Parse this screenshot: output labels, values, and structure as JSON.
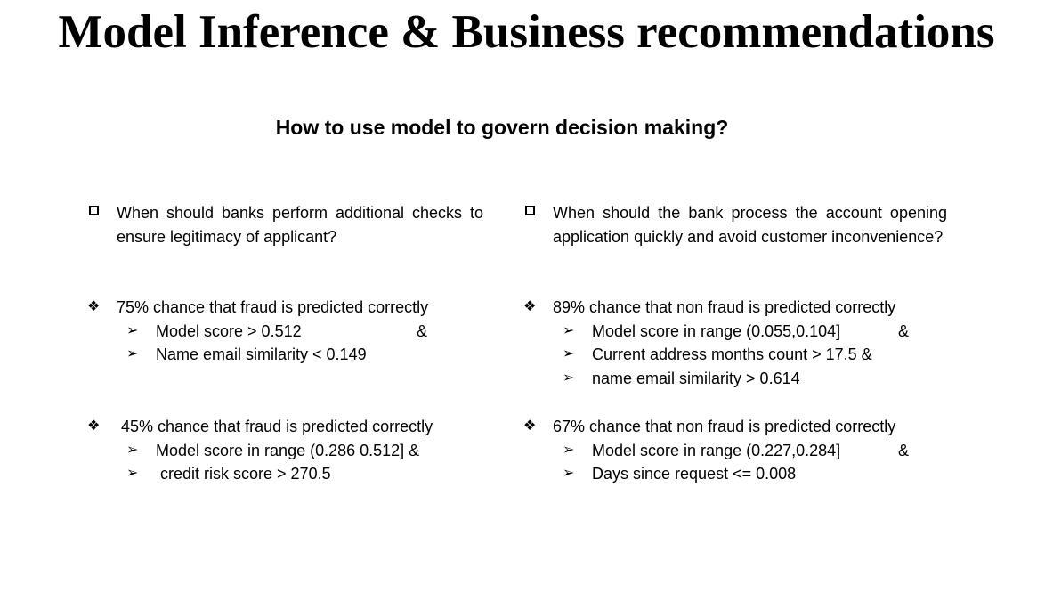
{
  "title": "Model Inference & Business recommendations",
  "subtitle": "How to use model to govern decision making?",
  "left": {
    "question": "When should banks perform additional checks  to ensure legitimacy of applicant?",
    "groups": [
      {
        "stat": "75% chance that fraud is predicted correctly",
        "conditions": [
          {
            "text": "Model score  > 0.512",
            "amp": "&"
          },
          {
            "text": "Name email similarity  < 0.149",
            "amp": ""
          }
        ]
      },
      {
        "stat": "45% chance that fraud is predicted correctly",
        "conditions": [
          {
            "text": "Model score in range (0.286 0.512] &",
            "amp": ""
          },
          {
            "text": " credit risk score > 270.5",
            "amp": ""
          }
        ]
      }
    ]
  },
  "right": {
    "question": "When should the bank process the account opening application quickly and avoid customer inconvenience?",
    "groups": [
      {
        "stat": "89% chance that non fraud is predicted correctly",
        "conditions": [
          {
            "text": "Model score in range  (0.055,0.104]",
            "amp": "&"
          },
          {
            "text": "Current address months count > 17.5  &",
            "amp": ""
          },
          {
            "text": "name email similarity >  0.614",
            "amp": ""
          }
        ]
      },
      {
        "stat": "67% chance that non fraud is predicted correctly",
        "conditions": [
          {
            "text": "Model score in range (0.227,0.284]",
            "amp": "&"
          },
          {
            "text": "Days since request <= 0.008",
            "amp": ""
          }
        ]
      }
    ]
  },
  "icons": {
    "question_bullet": "checkbox-square-icon",
    "stat_bullet": "four-diamond-icon",
    "condition_bullet": "arrowhead-icon"
  }
}
